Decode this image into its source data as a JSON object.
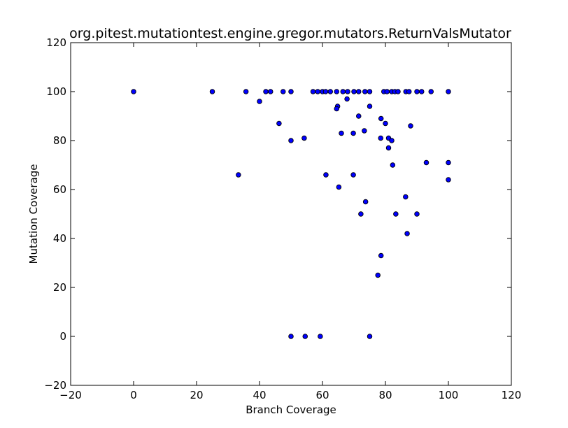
{
  "chart_data": {
    "type": "scatter",
    "title": "org.pitest.mutationtest.engine.gregor.mutators.ReturnValsMutator",
    "xlabel": "Branch Coverage",
    "ylabel": "Mutation Coverage",
    "xlim": [
      -20,
      120
    ],
    "ylim": [
      -20,
      120
    ],
    "xticks": [
      "−20",
      "0",
      "20",
      "40",
      "60",
      "80",
      "100",
      "120"
    ],
    "yticks": [
      "−20",
      "0",
      "20",
      "40",
      "60",
      "80",
      "100",
      "120"
    ],
    "grid": false,
    "marker_color": "#0000ff",
    "marker_edge": "#000000",
    "points": [
      [
        0,
        100
      ],
      [
        25,
        100
      ],
      [
        35.7,
        100
      ],
      [
        42,
        100
      ],
      [
        43.5,
        100
      ],
      [
        47.5,
        100
      ],
      [
        50,
        100
      ],
      [
        57,
        100
      ],
      [
        58.5,
        100
      ],
      [
        60,
        100
      ],
      [
        61,
        100
      ],
      [
        62.5,
        100
      ],
      [
        64.5,
        100
      ],
      [
        66.5,
        100
      ],
      [
        68,
        100
      ],
      [
        70,
        100
      ],
      [
        71.5,
        100
      ],
      [
        73.5,
        100
      ],
      [
        75,
        100
      ],
      [
        79.5,
        100
      ],
      [
        80.5,
        100
      ],
      [
        82,
        100
      ],
      [
        83,
        100
      ],
      [
        84,
        100
      ],
      [
        86.5,
        100
      ],
      [
        87.5,
        100
      ],
      [
        90,
        100
      ],
      [
        91.5,
        100
      ],
      [
        94.5,
        100
      ],
      [
        100,
        100
      ],
      [
        40,
        96
      ],
      [
        46.2,
        87
      ],
      [
        50,
        80
      ],
      [
        54.2,
        81
      ],
      [
        64.8,
        94
      ],
      [
        64.5,
        93
      ],
      [
        67.8,
        97
      ],
      [
        71.5,
        90
      ],
      [
        75,
        94
      ],
      [
        66,
        83
      ],
      [
        69.8,
        83
      ],
      [
        73.3,
        84
      ],
      [
        78.6,
        89
      ],
      [
        80,
        87
      ],
      [
        78.5,
        81
      ],
      [
        81,
        81
      ],
      [
        82,
        80
      ],
      [
        81,
        77
      ],
      [
        88,
        86
      ],
      [
        33.3,
        66
      ],
      [
        61.1,
        66
      ],
      [
        69.8,
        66
      ],
      [
        82.3,
        70
      ],
      [
        93,
        71
      ],
      [
        100,
        71
      ],
      [
        100,
        64
      ],
      [
        65.2,
        61
      ],
      [
        86.4,
        57
      ],
      [
        73.7,
        55
      ],
      [
        72.2,
        50
      ],
      [
        83.3,
        50
      ],
      [
        90,
        50
      ],
      [
        86.9,
        42
      ],
      [
        78.6,
        33
      ],
      [
        77.6,
        25
      ],
      [
        50,
        0
      ],
      [
        54.5,
        0
      ],
      [
        59.3,
        0
      ],
      [
        75,
        0
      ]
    ]
  }
}
